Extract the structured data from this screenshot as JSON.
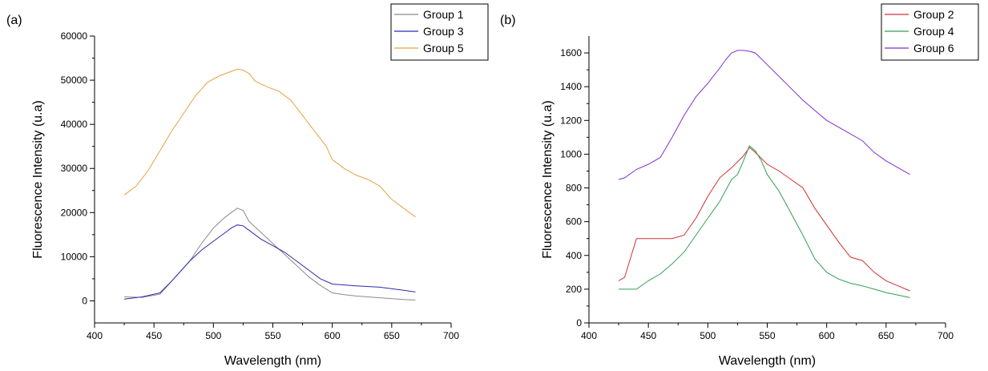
{
  "chart_data": [
    {
      "panel_label": "(a)",
      "type": "line",
      "xlabel": "Wavelength (nm)",
      "ylabel": "Fluorescence Intensity (u.a)",
      "xlim": [
        400,
        700
      ],
      "ylim": [
        -5000,
        60000
      ],
      "xticks": [
        400,
        450,
        500,
        550,
        600,
        650,
        700
      ],
      "yticks": [
        0,
        10000,
        20000,
        30000,
        40000,
        50000,
        60000
      ],
      "legend_position": "top-right",
      "series": [
        {
          "name": "Group 1",
          "color": "#8a8a8a",
          "x": [
            425,
            440,
            455,
            465,
            480,
            490,
            500,
            510,
            515,
            520,
            525,
            530,
            540,
            550,
            560,
            570,
            580,
            590,
            600,
            610,
            620,
            640,
            660,
            670
          ],
          "y": [
            900,
            800,
            1500,
            4500,
            9000,
            13000,
            16500,
            19000,
            20000,
            21000,
            20500,
            18000,
            15500,
            13000,
            10500,
            8000,
            5500,
            3500,
            1800,
            1400,
            1100,
            700,
            300,
            200
          ]
        },
        {
          "name": "Group 3",
          "color": "#2a2ab0",
          "x": [
            425,
            440,
            455,
            465,
            480,
            490,
            500,
            510,
            515,
            520,
            525,
            530,
            540,
            550,
            560,
            570,
            580,
            590,
            600,
            610,
            620,
            640,
            660,
            670
          ],
          "y": [
            400,
            900,
            1800,
            4500,
            9000,
            11500,
            13500,
            15500,
            16500,
            17200,
            17000,
            16000,
            14000,
            12500,
            11000,
            9000,
            7000,
            5000,
            3800,
            3600,
            3400,
            3100,
            2400,
            2000
          ]
        },
        {
          "name": "Group 5",
          "color": "#e8a040",
          "x": [
            425,
            435,
            445,
            455,
            465,
            475,
            485,
            495,
            505,
            515,
            520,
            525,
            530,
            535,
            545,
            555,
            565,
            575,
            585,
            595,
            600,
            610,
            620,
            630,
            640,
            650,
            660,
            670
          ],
          "y": [
            24000,
            26000,
            29500,
            34000,
            38500,
            42500,
            46500,
            49500,
            51000,
            52000,
            52500,
            52300,
            51500,
            49800,
            48500,
            47500,
            45500,
            42000,
            38500,
            35000,
            32000,
            30000,
            28500,
            27500,
            26000,
            23000,
            21000,
            19000
          ]
        }
      ]
    },
    {
      "panel_label": "(b)",
      "type": "line",
      "xlabel": "Wavelength (nm)",
      "ylabel": "Fluorescence Intensity (u.a)",
      "xlim": [
        400,
        700
      ],
      "ylim": [
        0,
        1700
      ],
      "xticks": [
        400,
        450,
        500,
        550,
        600,
        650,
        700
      ],
      "yticks": [
        0,
        200,
        400,
        600,
        800,
        1000,
        1200,
        1400,
        1600
      ],
      "legend_position": "top-right",
      "series": [
        {
          "name": "Group 2",
          "color": "#d03030",
          "x": [
            425,
            430,
            440,
            450,
            460,
            470,
            480,
            490,
            500,
            510,
            520,
            530,
            535,
            540,
            550,
            560,
            570,
            580,
            590,
            600,
            610,
            620,
            630,
            640,
            650,
            660,
            670
          ],
          "y": [
            250,
            270,
            500,
            500,
            500,
            500,
            520,
            620,
            750,
            860,
            920,
            990,
            1040,
            1010,
            940,
            900,
            850,
            800,
            680,
            580,
            480,
            390,
            370,
            300,
            250,
            220,
            190
          ]
        },
        {
          "name": "Group 4",
          "color": "#30a050",
          "x": [
            425,
            440,
            450,
            460,
            470,
            480,
            490,
            500,
            510,
            520,
            525,
            530,
            535,
            540,
            545,
            550,
            560,
            570,
            580,
            590,
            600,
            610,
            620,
            630,
            640,
            650,
            660,
            670
          ],
          "y": [
            200,
            200,
            250,
            290,
            350,
            420,
            520,
            620,
            720,
            850,
            880,
            960,
            1050,
            1020,
            960,
            880,
            780,
            650,
            520,
            380,
            300,
            260,
            235,
            220,
            200,
            180,
            165,
            150
          ]
        },
        {
          "name": "Group 6",
          "color": "#8030d0",
          "x": [
            425,
            430,
            440,
            450,
            460,
            470,
            480,
            490,
            500,
            510,
            515,
            520,
            525,
            530,
            535,
            540,
            550,
            560,
            570,
            580,
            590,
            600,
            610,
            620,
            630,
            640,
            650,
            660,
            670
          ],
          "y": [
            850,
            860,
            910,
            940,
            980,
            1100,
            1230,
            1340,
            1420,
            1510,
            1560,
            1600,
            1615,
            1615,
            1610,
            1600,
            1530,
            1460,
            1390,
            1320,
            1260,
            1200,
            1160,
            1120,
            1080,
            1010,
            960,
            920,
            880
          ]
        }
      ]
    }
  ]
}
